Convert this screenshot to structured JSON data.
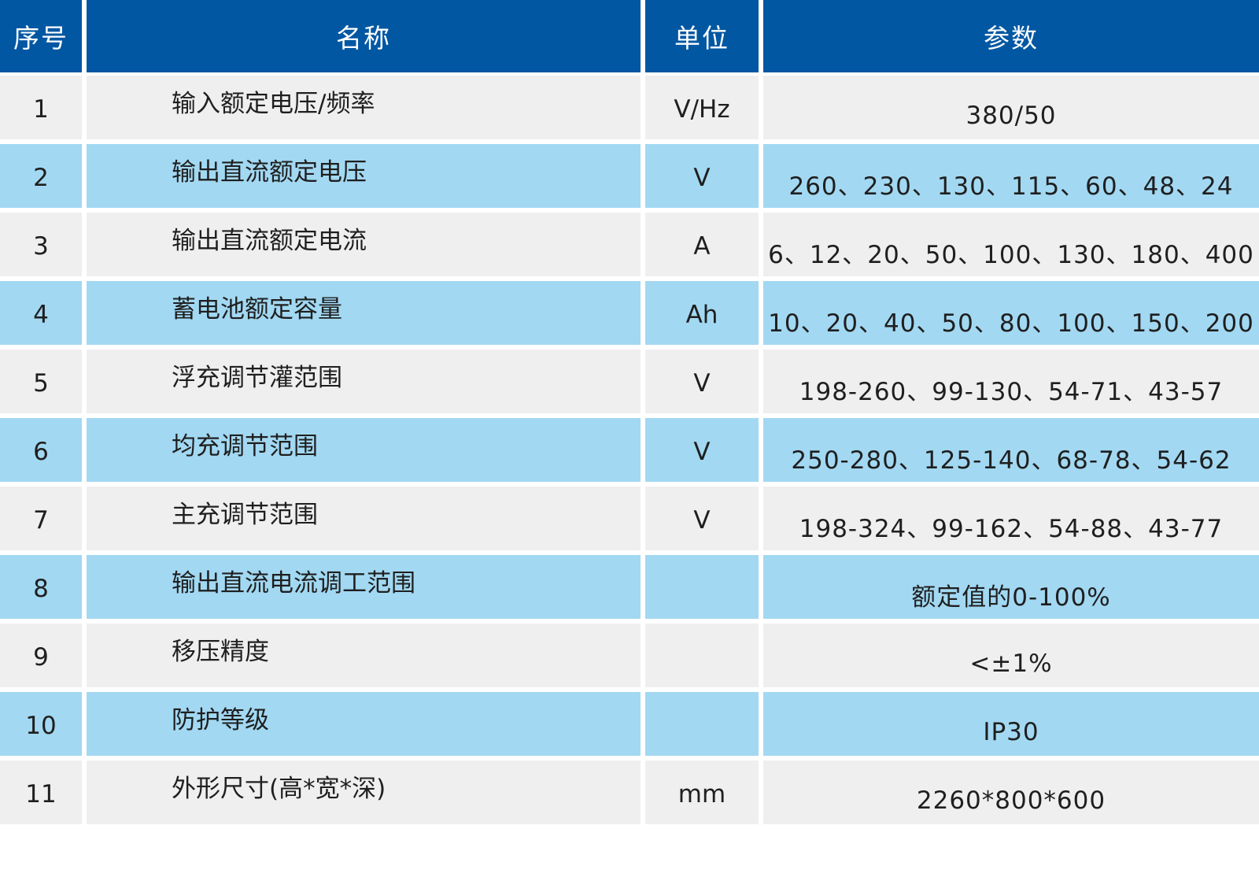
{
  "table": {
    "headers": {
      "no": "序号",
      "name": "名称",
      "unit": "单位",
      "param": "参数"
    },
    "rows": [
      {
        "no": "1",
        "name": "输入额定电压/频率",
        "unit": "V/Hz",
        "param": "380/50"
      },
      {
        "no": "2",
        "name": "输出直流额定电压",
        "unit": "V",
        "param": "260、230、130、115、60、48、24"
      },
      {
        "no": "3",
        "name": "输出直流额定电流",
        "unit": "A",
        "param": "6、12、20、50、100、130、180、400"
      },
      {
        "no": "4",
        "name": "蓄电池额定容量",
        "unit": "Ah",
        "param": "10、20、40、50、80、100、150、200"
      },
      {
        "no": "5",
        "name": "浮充调节灌范围",
        "unit": "V",
        "param": "198-260、99-130、54-71、43-57"
      },
      {
        "no": "6",
        "name": "均充调节范围",
        "unit": "V",
        "param": "250-280、125-140、68-78、54-62"
      },
      {
        "no": "7",
        "name": "主充调节范围",
        "unit": "V",
        "param": "198-324、99-162、54-88、43-77"
      },
      {
        "no": "8",
        "name": "输出直流电流调工范围",
        "unit": "",
        "param": "额定值的0-100%"
      },
      {
        "no": "9",
        "name": "移压精度",
        "unit": "",
        "param": "<±1%"
      },
      {
        "no": "10",
        "name": "防护等级",
        "unit": "",
        "param": "IP30"
      },
      {
        "no": "11",
        "name": "外形尺寸(高*宽*深)",
        "unit": "mm",
        "param": "2260*800*600"
      }
    ]
  },
  "colors": {
    "header": "#0157a2",
    "row_gray": "#efefef",
    "row_blue": "#a2d8f2"
  }
}
